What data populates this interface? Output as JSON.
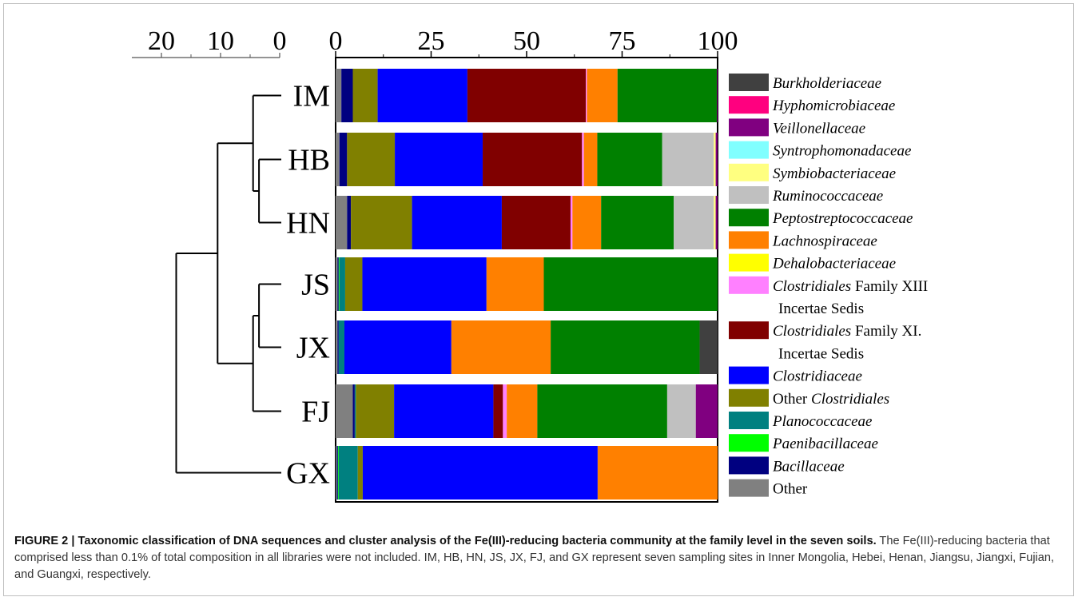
{
  "chart_data": {
    "type": "bar",
    "orientation": "horizontal",
    "stacked": true,
    "bar_axis_ticks": [
      "0",
      "25",
      "50",
      "75",
      "100"
    ],
    "bar_axis_range": [
      0,
      100
    ],
    "dendrogram_axis_ticks": [
      "20",
      "10",
      "0"
    ],
    "dendrogram_axis_range": [
      25,
      0
    ],
    "categories": [
      "IM",
      "HB",
      "HN",
      "JS",
      "JX",
      "FJ",
      "GX"
    ],
    "legend": [
      {
        "name": "Burkholderiaceae",
        "italic": true,
        "color": "#404040"
      },
      {
        "name": "Hyphomicrobiaceae",
        "italic": true,
        "color": "#ff007f"
      },
      {
        "name": "Veillonellaceae",
        "italic": true,
        "color": "#800080"
      },
      {
        "name": "Syntrophomonadaceae",
        "italic": true,
        "color": "#80ffff"
      },
      {
        "name": "Symbiobacteriaceae",
        "italic": true,
        "color": "#ffff80"
      },
      {
        "name": "Ruminococcaceae",
        "italic": true,
        "color": "#c0c0c0"
      },
      {
        "name": "Peptostreptococcaceae",
        "italic": true,
        "color": "#008000"
      },
      {
        "name": "Lachnospiraceae",
        "italic": true,
        "color": "#ff8000"
      },
      {
        "name": "Dehalobacteriaceae",
        "italic": true,
        "color": "#ffff00"
      },
      {
        "name": "Clostridiales",
        "italic": true,
        "suffix": " Family XIII",
        "line2": "Incertae Sedis",
        "color": "#ff80ff"
      },
      {
        "name": "Clostridiales",
        "italic": true,
        "suffix": " Family XI.",
        "line2": "Incertae Sedis",
        "color": "#800000"
      },
      {
        "name": "Clostridiaceae",
        "italic": true,
        "color": "#0000ff"
      },
      {
        "prefix": "Other ",
        "name": "Clostridiales",
        "italic": true,
        "color": "#808000"
      },
      {
        "name": "Planococcaceae",
        "italic": true,
        "color": "#008080"
      },
      {
        "name": "Paenibacillaceae",
        "italic": true,
        "color": "#00ff00"
      },
      {
        "name": "Bacillaceae",
        "italic": true,
        "color": "#000080"
      },
      {
        "name": "Other",
        "italic": false,
        "color": "#808080"
      }
    ],
    "stack_order": [
      "Other",
      "Bacillaceae",
      "Paenibacillaceae",
      "Planococcaceae",
      "Other Clostridiales",
      "Clostridiaceae",
      "Clostridiales Family XI. Incertae Sedis",
      "Clostridiales Family XIII Incertae Sedis",
      "Dehalobacteriaceae",
      "Lachnospiraceae",
      "Peptostreptococcaceae",
      "Ruminococcaceae",
      "Symbiobacteriaceae",
      "Syntrophomonadaceae",
      "Veillonellaceae",
      "Hyphomicrobiaceae",
      "Burkholderiaceae"
    ],
    "series": [
      {
        "name": "Other",
        "values": [
          1.5,
          1.0,
          3.0,
          0.5,
          0.5,
          4.5,
          0.3
        ]
      },
      {
        "name": "Bacillaceae",
        "values": [
          3.0,
          2.0,
          1.0,
          0.3,
          0.3,
          0.5,
          0.3
        ]
      },
      {
        "name": "Paenibacillaceae",
        "values": [
          0,
          0,
          0,
          0.2,
          0,
          0,
          0.2
        ]
      },
      {
        "name": "Planococcaceae",
        "values": [
          0,
          0,
          0,
          1.5,
          1.5,
          0.3,
          5.0
        ]
      },
      {
        "name": "Other Clostridiales",
        "values": [
          6.5,
          12.5,
          16.0,
          4.5,
          0,
          10.0,
          1.3
        ]
      },
      {
        "name": "Clostridiaceae",
        "values": [
          23.5,
          23.0,
          23.5,
          32.5,
          28.0,
          26.0,
          61.5
        ]
      },
      {
        "name": "Clostridiales Family XI. Incertae Sedis",
        "values": [
          31.0,
          26.0,
          18.0,
          0,
          0,
          2.5,
          0
        ]
      },
      {
        "name": "Clostridiales Family XIII Incertae Sedis",
        "values": [
          0.3,
          0.5,
          0.5,
          0,
          0,
          1.0,
          0
        ]
      },
      {
        "name": "Dehalobacteriaceae",
        "values": [
          0,
          0,
          0,
          0,
          0,
          0,
          0
        ]
      },
      {
        "name": "Lachnospiraceae",
        "values": [
          8.0,
          3.5,
          7.5,
          15.0,
          26.0,
          8.0,
          31.4
        ]
      },
      {
        "name": "Peptostreptococcaceae",
        "values": [
          26.0,
          17.0,
          19.0,
          45.5,
          39.0,
          34.0,
          0
        ]
      },
      {
        "name": "Ruminococcaceae",
        "values": [
          0,
          13.5,
          10.5,
          0,
          0,
          7.5,
          0
        ]
      },
      {
        "name": "Symbiobacteriaceae",
        "values": [
          0,
          0.5,
          0.5,
          0,
          0,
          0,
          0
        ]
      },
      {
        "name": "Syntrophomonadaceae",
        "values": [
          0,
          0,
          0,
          0,
          0,
          0,
          0
        ]
      },
      {
        "name": "Veillonellaceae",
        "values": [
          0.2,
          0.5,
          1.0,
          0,
          0,
          5.7,
          0
        ]
      },
      {
        "name": "Hyphomicrobiaceae",
        "values": [
          0,
          0,
          0,
          0,
          0,
          0,
          0
        ]
      },
      {
        "name": "Burkholderiaceae",
        "values": [
          0,
          0,
          0,
          0,
          4.7,
          0,
          0
        ]
      }
    ],
    "dendrogram": {
      "leaves": [
        "IM",
        "HB",
        "HN",
        "JS",
        "JX",
        "FJ",
        "GX"
      ],
      "merges": [
        {
          "left": "HB",
          "right": "HN",
          "height": 3.5
        },
        {
          "left": "IM",
          "right": "HB+HN",
          "height": 4.5
        },
        {
          "left": "JS",
          "right": "JX",
          "height": 3.5
        },
        {
          "left": "JS+JX",
          "right": "FJ",
          "height": 4.5
        },
        {
          "left": "IM+HB+HN",
          "right": "JS+JX+FJ",
          "height": 10.5
        },
        {
          "left": "IM..FJ",
          "right": "GX",
          "height": 17.5
        }
      ]
    }
  },
  "caption": {
    "title": "FIGURE 2 | Taxonomic classification of DNA sequences and cluster analysis of the Fe(III)-reducing bacteria community at the family level in the seven soils.",
    "body": " The Fe(III)-reducing bacteria that comprised less than 0.1% of total composition in all libraries were not included. IM, HB, HN, JS, JX, FJ, and GX represent seven sampling sites in Inner Mongolia, Hebei, Henan, Jiangsu, Jiangxi, Fujian, and Guangxi, respectively."
  }
}
